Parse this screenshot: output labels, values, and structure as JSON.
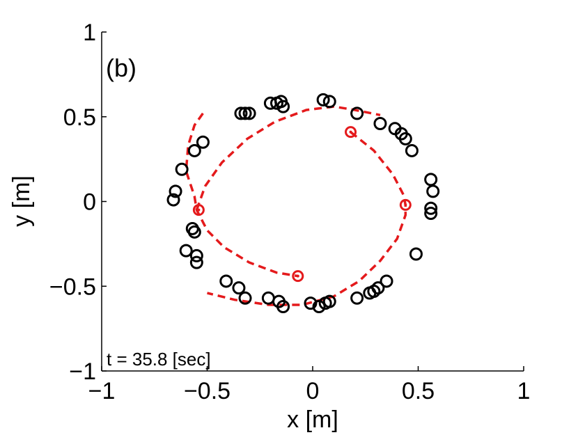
{
  "chart_data": {
    "type": "scatter",
    "panel_label": "(b)",
    "annotation": "t = 35.8 [sec]",
    "xlabel": "x [m]",
    "ylabel": "y [m]",
    "xlim": [
      -1,
      1
    ],
    "ylim": [
      -1,
      1
    ],
    "x_ticks": [
      -1,
      -0.5,
      0,
      0.5,
      1
    ],
    "x_tick_labels": [
      "−1",
      "−0.5",
      "0",
      "0.5",
      "1"
    ],
    "y_ticks": [
      -1,
      -0.5,
      0,
      0.5,
      1
    ],
    "y_tick_labels": [
      "−1",
      "−0.5",
      "0",
      "0.5",
      "1"
    ],
    "grid": false,
    "colors": {
      "particles": "#000000",
      "tracked": "#e41a1c",
      "trajectory": "#e41a1c"
    },
    "series": [
      {
        "marker": "open-circle",
        "color": "#000000",
        "points": [
          [
            0.05,
            0.6
          ],
          [
            0.08,
            0.59
          ],
          [
            0.21,
            0.52
          ],
          [
            0.32,
            0.46
          ],
          [
            0.39,
            0.43
          ],
          [
            0.42,
            0.4
          ],
          [
            0.44,
            0.37
          ],
          [
            0.47,
            0.3
          ],
          [
            -0.17,
            0.58
          ],
          [
            -0.15,
            0.59
          ],
          [
            -0.2,
            0.58
          ],
          [
            -0.14,
            0.56
          ],
          [
            -0.32,
            0.52
          ],
          [
            -0.34,
            0.52
          ],
          [
            -0.3,
            0.52
          ],
          [
            -0.52,
            0.35
          ],
          [
            -0.56,
            0.3
          ],
          [
            -0.62,
            0.19
          ],
          [
            -0.65,
            0.06
          ],
          [
            -0.66,
            0.01
          ],
          [
            -0.57,
            -0.16
          ],
          [
            -0.56,
            -0.18
          ],
          [
            -0.6,
            -0.29
          ],
          [
            -0.55,
            -0.32
          ],
          [
            -0.55,
            -0.36
          ],
          [
            0.56,
            0.13
          ],
          [
            0.57,
            0.06
          ],
          [
            0.56,
            -0.04
          ],
          [
            0.56,
            -0.07
          ],
          [
            0.49,
            -0.31
          ],
          [
            -0.41,
            -0.47
          ],
          [
            -0.35,
            -0.51
          ],
          [
            -0.32,
            -0.57
          ],
          [
            -0.21,
            -0.57
          ],
          [
            -0.16,
            -0.59
          ],
          [
            -0.14,
            -0.62
          ],
          [
            -0.01,
            -0.6
          ],
          [
            0.03,
            -0.62
          ],
          [
            0.06,
            -0.6
          ],
          [
            0.08,
            -0.59
          ],
          [
            0.21,
            -0.57
          ],
          [
            0.27,
            -0.54
          ],
          [
            0.29,
            -0.53
          ],
          [
            0.31,
            -0.51
          ],
          [
            0.35,
            -0.47
          ]
        ]
      },
      {
        "marker": "open-circle",
        "color": "#e41a1c",
        "points": [
          [
            0.18,
            0.41
          ],
          [
            0.44,
            -0.02
          ],
          [
            -0.54,
            -0.05
          ],
          [
            -0.07,
            -0.44
          ]
        ]
      },
      {
        "marker": "dashed-line",
        "color": "#e41a1c",
        "points": [
          [
            -0.52,
            0.52
          ],
          [
            -0.56,
            0.45
          ],
          [
            -0.59,
            0.33
          ],
          [
            -0.6,
            0.18
          ],
          [
            -0.56,
            0.03
          ],
          [
            -0.55,
            -0.05
          ],
          [
            -0.5,
            -0.17
          ],
          [
            -0.42,
            -0.27
          ],
          [
            -0.3,
            -0.36
          ],
          [
            -0.17,
            -0.42
          ],
          [
            -0.07,
            -0.44
          ]
        ]
      },
      {
        "marker": "dashed-line",
        "color": "#e41a1c",
        "points": [
          [
            -0.55,
            -0.05
          ],
          [
            -0.51,
            0.09
          ],
          [
            -0.43,
            0.23
          ],
          [
            -0.31,
            0.37
          ],
          [
            -0.18,
            0.47
          ],
          [
            -0.03,
            0.54
          ],
          [
            0.1,
            0.56
          ],
          [
            0.2,
            0.54
          ],
          [
            0.32,
            0.51
          ]
        ]
      },
      {
        "marker": "dashed-line",
        "color": "#e41a1c",
        "points": [
          [
            0.18,
            0.41
          ],
          [
            0.29,
            0.3
          ],
          [
            0.38,
            0.16
          ],
          [
            0.43,
            0.04
          ],
          [
            0.44,
            -0.02
          ],
          [
            0.44,
            -0.08
          ],
          [
            0.4,
            -0.22
          ],
          [
            0.32,
            -0.35
          ],
          [
            0.22,
            -0.47
          ],
          [
            0.1,
            -0.56
          ],
          [
            -0.05,
            -0.61
          ],
          [
            -0.21,
            -0.61
          ],
          [
            -0.37,
            -0.58
          ],
          [
            -0.5,
            -0.54
          ]
        ]
      }
    ]
  }
}
